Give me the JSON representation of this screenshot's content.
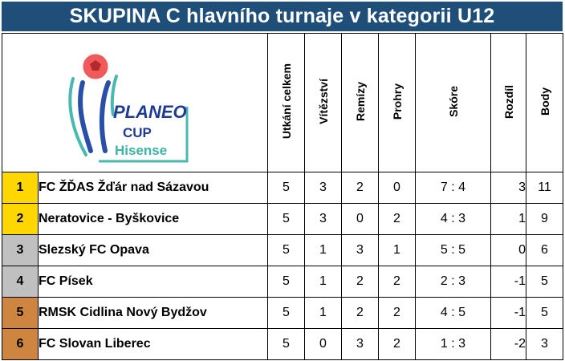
{
  "title": "SKUPINA C hlavního turnaje v kategorii U12",
  "logo": {
    "line1": "PLANEO",
    "line2": "CUP",
    "line3": "Hisense"
  },
  "headers": [
    "Utkání celkem",
    "Vítězství",
    "Remízy",
    "Prohry",
    "Skóre",
    "Rozdíl",
    "Body"
  ],
  "colors": {
    "title_bg": "#1f4e79",
    "rank_gold": "#ffd700",
    "rank_silver": "#c0c0c0",
    "rank_bronze": "#cd853f",
    "negative": "#e02020"
  },
  "rows": [
    {
      "rank": "1",
      "team": "FC ŽĎAS Žďár nad Sázavou",
      "played": "5",
      "wins": "3",
      "draws": "2",
      "losses": "0",
      "score": "7 : 4",
      "diff": "3",
      "points": "11"
    },
    {
      "rank": "2",
      "team": "Neratovice - Byškovice",
      "played": "5",
      "wins": "3",
      "draws": "0",
      "losses": "2",
      "score": "4 : 3",
      "diff": "1",
      "points": "9"
    },
    {
      "rank": "3",
      "team": "Slezský FC Opava",
      "played": "5",
      "wins": "1",
      "draws": "3",
      "losses": "1",
      "score": "5 : 5",
      "diff": "0",
      "points": "6"
    },
    {
      "rank": "4",
      "team": "FC Písek",
      "played": "5",
      "wins": "1",
      "draws": "2",
      "losses": "2",
      "score": "2 : 3",
      "diff": "-1",
      "points": "5"
    },
    {
      "rank": "5",
      "team": "RMSK Cidlina Nový Bydžov",
      "played": "5",
      "wins": "1",
      "draws": "2",
      "losses": "2",
      "score": "4 : 5",
      "diff": "-1",
      "points": "5"
    },
    {
      "rank": "6",
      "team": "FC Slovan Liberec",
      "played": "5",
      "wins": "0",
      "draws": "3",
      "losses": "2",
      "score": "1 : 3",
      "diff": "-2",
      "points": "3"
    }
  ]
}
